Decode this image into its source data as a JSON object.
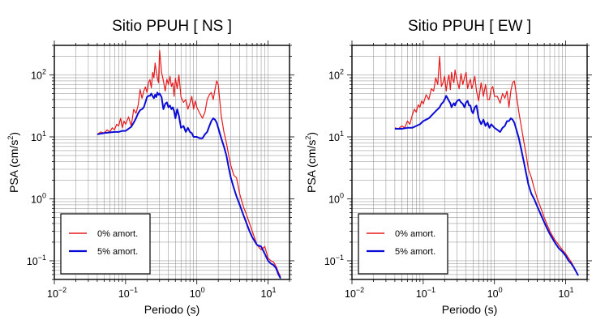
{
  "chart_data": [
    {
      "type": "line",
      "title": "Sitio PPUH [ NS ]",
      "xlabel": "Periodo (s)",
      "ylabel": {
        "main": "PSA (cm/s",
        "sup": "2",
        "close": ")"
      },
      "xscale": "log",
      "yscale": "log",
      "xlim": [
        0.01,
        20
      ],
      "ylim": [
        0.05,
        300
      ],
      "xticks": [
        {
          "base": "10",
          "exp": "−2"
        },
        {
          "base": "10",
          "exp": "−1"
        },
        {
          "base": "10",
          "exp": "0"
        },
        {
          "base": "10",
          "exp": "1"
        }
      ],
      "yticks": [
        {
          "base": "10",
          "exp": "−1"
        },
        {
          "base": "10",
          "exp": "0"
        },
        {
          "base": "10",
          "exp": "1"
        },
        {
          "base": "10",
          "exp": "2"
        }
      ],
      "grid": true,
      "legend_position": "bottom-left",
      "series": [
        {
          "name": "0% amort.",
          "color": "#e8191b",
          "x": [
            0.04,
            0.045,
            0.05,
            0.055,
            0.06,
            0.065,
            0.07,
            0.075,
            0.08,
            0.085,
            0.09,
            0.095,
            0.1,
            0.11,
            0.12,
            0.13,
            0.14,
            0.15,
            0.16,
            0.17,
            0.18,
            0.19,
            0.2,
            0.21,
            0.22,
            0.23,
            0.24,
            0.25,
            0.26,
            0.27,
            0.28,
            0.29,
            0.3,
            0.32,
            0.34,
            0.36,
            0.38,
            0.4,
            0.42,
            0.44,
            0.46,
            0.48,
            0.5,
            0.53,
            0.56,
            0.6,
            0.65,
            0.7,
            0.75,
            0.8,
            0.85,
            0.9,
            0.95,
            1.0,
            1.1,
            1.2,
            1.3,
            1.4,
            1.5,
            1.6,
            1.7,
            1.8,
            1.9,
            2.0,
            2.2,
            2.4,
            2.6,
            2.8,
            3.0,
            3.3,
            3.6,
            4.0,
            4.5,
            5.0,
            5.5,
            6.0,
            7.0,
            8.0,
            9.0,
            10,
            11,
            12,
            13,
            14,
            15
          ],
          "y": [
            11,
            12,
            11.5,
            13,
            12,
            14,
            13,
            16,
            15,
            20,
            14,
            18,
            16,
            21,
            15,
            28,
            24,
            32,
            58,
            42,
            55,
            64,
            52,
            76,
            84,
            62,
            110,
            90,
            155,
            115,
            88,
            75,
            250,
            110,
            80,
            55,
            85,
            70,
            95,
            65,
            75,
            45,
            88,
            60,
            100,
            44,
            36,
            40,
            28,
            35,
            45,
            28,
            38,
            30,
            24,
            20,
            25,
            40,
            48,
            52,
            40,
            58,
            80,
            70,
            22,
            12,
            8,
            5,
            3.5,
            2.4,
            2.2,
            1.2,
            0.75,
            0.55,
            0.4,
            0.3,
            0.18,
            0.15,
            0.17,
            0.11,
            0.1,
            0.095,
            0.08,
            0.065,
            0.055
          ]
        },
        {
          "name": "5% amort.",
          "color": "#0b0bd6",
          "x": [
            0.04,
            0.05,
            0.06,
            0.07,
            0.08,
            0.09,
            0.1,
            0.11,
            0.12,
            0.13,
            0.14,
            0.15,
            0.16,
            0.17,
            0.18,
            0.19,
            0.2,
            0.21,
            0.22,
            0.23,
            0.24,
            0.25,
            0.26,
            0.27,
            0.28,
            0.29,
            0.3,
            0.32,
            0.34,
            0.36,
            0.38,
            0.4,
            0.42,
            0.44,
            0.46,
            0.48,
            0.5,
            0.53,
            0.56,
            0.6,
            0.65,
            0.7,
            0.75,
            0.8,
            0.85,
            0.9,
            0.95,
            1.0,
            1.1,
            1.2,
            1.3,
            1.4,
            1.5,
            1.6,
            1.7,
            1.8,
            1.9,
            2.0,
            2.2,
            2.4,
            2.6,
            2.8,
            3.0,
            3.3,
            3.6,
            4.0,
            4.5,
            5.0,
            5.5,
            6.0,
            7.0,
            8.0,
            9.0,
            10,
            11,
            12,
            13,
            14,
            15
          ],
          "y": [
            11,
            11.5,
            11.8,
            12,
            12,
            12.5,
            12.5,
            13.5,
            14.5,
            17,
            20,
            24,
            27,
            28,
            30,
            36,
            44,
            46,
            46,
            50,
            45,
            42,
            48,
            44,
            52,
            48,
            50,
            44,
            28,
            34,
            36,
            30,
            32,
            28,
            30,
            26,
            20,
            28,
            22,
            14,
            15,
            12,
            14,
            12,
            11.5,
            10,
            10,
            10,
            9.5,
            9.5,
            11,
            12,
            15,
            18,
            20,
            19,
            17,
            14,
            9.5,
            7,
            5,
            3.2,
            2.2,
            1.5,
            1.1,
            0.8,
            0.55,
            0.4,
            0.3,
            0.24,
            0.18,
            0.17,
            0.13,
            0.1,
            0.09,
            0.085,
            0.075,
            0.06,
            0.052
          ]
        }
      ]
    },
    {
      "type": "line",
      "title": "Sitio PPUH [ EW ]",
      "xlabel": "Periodo (s)",
      "ylabel": {
        "main": "PSA (cm/s",
        "sup": "2",
        "close": ")"
      },
      "xscale": "log",
      "yscale": "log",
      "xlim": [
        0.01,
        20
      ],
      "ylim": [
        0.05,
        300
      ],
      "xticks": [
        {
          "base": "10",
          "exp": "−2"
        },
        {
          "base": "10",
          "exp": "−1"
        },
        {
          "base": "10",
          "exp": "0"
        },
        {
          "base": "10",
          "exp": "1"
        }
      ],
      "yticks": [
        {
          "base": "10",
          "exp": "−1"
        },
        {
          "base": "10",
          "exp": "0"
        },
        {
          "base": "10",
          "exp": "1"
        },
        {
          "base": "10",
          "exp": "2"
        }
      ],
      "grid": true,
      "legend_position": "bottom-left",
      "series": [
        {
          "name": "0% amort.",
          "color": "#e8191b",
          "x": [
            0.04,
            0.045,
            0.05,
            0.055,
            0.06,
            0.065,
            0.07,
            0.075,
            0.08,
            0.085,
            0.09,
            0.095,
            0.1,
            0.11,
            0.12,
            0.13,
            0.14,
            0.15,
            0.16,
            0.17,
            0.18,
            0.19,
            0.2,
            0.21,
            0.22,
            0.23,
            0.24,
            0.25,
            0.26,
            0.27,
            0.28,
            0.29,
            0.3,
            0.32,
            0.34,
            0.36,
            0.38,
            0.4,
            0.42,
            0.44,
            0.46,
            0.48,
            0.5,
            0.53,
            0.56,
            0.6,
            0.65,
            0.7,
            0.75,
            0.8,
            0.85,
            0.9,
            0.95,
            1.0,
            1.1,
            1.2,
            1.3,
            1.4,
            1.5,
            1.6,
            1.7,
            1.8,
            1.9,
            2.0,
            2.2,
            2.4,
            2.6,
            2.8,
            3.0,
            3.3,
            3.6,
            4.0,
            4.5,
            5.0,
            5.5,
            6.0,
            7.0,
            8.0,
            9.0,
            10,
            11,
            12,
            13,
            14,
            15
          ],
          "y": [
            14,
            13.5,
            15,
            14,
            18,
            16,
            22,
            28,
            25,
            33,
            30,
            38,
            34,
            48,
            40,
            60,
            55,
            90,
            70,
            200,
            65,
            75,
            95,
            55,
            80,
            100,
            58,
            110,
            85,
            75,
            120,
            95,
            80,
            60,
            105,
            70,
            90,
            110,
            60,
            75,
            85,
            60,
            70,
            95,
            55,
            38,
            75,
            45,
            70,
            40,
            40,
            60,
            65,
            45,
            45,
            35,
            50,
            42,
            55,
            30,
            55,
            75,
            80,
            55,
            25,
            14,
            8,
            5,
            3,
            2.2,
            1.5,
            1.0,
            0.7,
            0.5,
            0.38,
            0.3,
            0.22,
            0.18,
            0.15,
            0.13,
            0.11,
            0.095,
            0.08,
            0.067,
            0.058
          ]
        },
        {
          "name": "5% amort.",
          "color": "#0b0bd6",
          "x": [
            0.04,
            0.05,
            0.06,
            0.07,
            0.08,
            0.09,
            0.1,
            0.11,
            0.12,
            0.13,
            0.14,
            0.15,
            0.16,
            0.17,
            0.18,
            0.19,
            0.2,
            0.21,
            0.22,
            0.23,
            0.24,
            0.25,
            0.26,
            0.27,
            0.28,
            0.29,
            0.3,
            0.32,
            0.34,
            0.36,
            0.38,
            0.4,
            0.42,
            0.44,
            0.46,
            0.48,
            0.5,
            0.53,
            0.56,
            0.6,
            0.65,
            0.7,
            0.75,
            0.8,
            0.85,
            0.9,
            0.95,
            1.0,
            1.1,
            1.2,
            1.3,
            1.4,
            1.5,
            1.6,
            1.7,
            1.8,
            1.9,
            2.0,
            2.2,
            2.4,
            2.6,
            2.8,
            3.0,
            3.3,
            3.6,
            4.0,
            4.5,
            5.0,
            5.5,
            6.0,
            7.0,
            8.0,
            9.0,
            10,
            11,
            12,
            13,
            14,
            15
          ],
          "y": [
            13.5,
            13.5,
            14,
            14,
            15,
            16,
            18,
            19,
            20,
            22,
            24,
            26,
            28,
            30,
            34,
            36,
            40,
            46,
            42,
            38,
            35,
            30,
            33,
            35,
            32,
            36,
            38,
            40,
            36,
            34,
            30,
            36,
            38,
            32,
            32,
            26,
            24,
            30,
            32,
            20,
            16,
            19,
            15,
            17,
            14,
            16,
            15,
            14,
            13,
            12,
            14,
            15,
            18,
            18,
            20,
            19,
            17,
            14,
            9.5,
            6,
            3.8,
            2.5,
            1.7,
            1.2,
            1.0,
            0.75,
            0.55,
            0.42,
            0.33,
            0.27,
            0.2,
            0.16,
            0.14,
            0.12,
            0.1,
            0.09,
            0.078,
            0.067,
            0.058
          ]
        }
      ]
    }
  ]
}
